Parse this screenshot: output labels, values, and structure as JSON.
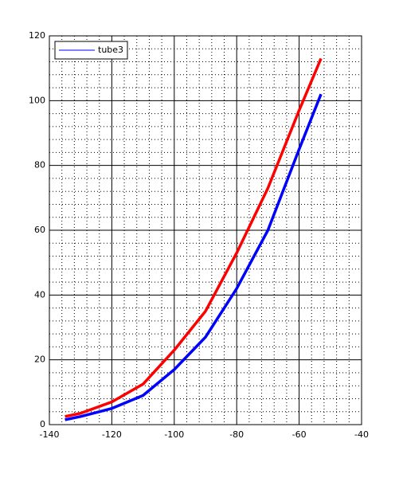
{
  "chart_data": {
    "type": "line",
    "x": [
      -135,
      -130,
      -120,
      -110,
      -100,
      -90,
      -80,
      -70,
      -60,
      -53
    ],
    "series": [
      {
        "name": "tube3",
        "color": "#0000ff",
        "values": [
          1.5,
          2.5,
          5,
          9,
          17,
          27,
          42,
          60,
          85,
          102
        ]
      },
      {
        "color": "#ff0000",
        "values": [
          2.5,
          3.5,
          7,
          12.5,
          23,
          35,
          53,
          73,
          97,
          113
        ]
      }
    ],
    "xlim": [
      -140,
      -40
    ],
    "xticks": [
      -140,
      -120,
      -100,
      -80,
      -60,
      -40
    ],
    "ylim": [
      0,
      120
    ],
    "yticks": [
      0,
      20,
      40,
      60,
      80,
      100,
      120
    ],
    "grid": true,
    "minor_grid": true,
    "legend": "upper left"
  }
}
